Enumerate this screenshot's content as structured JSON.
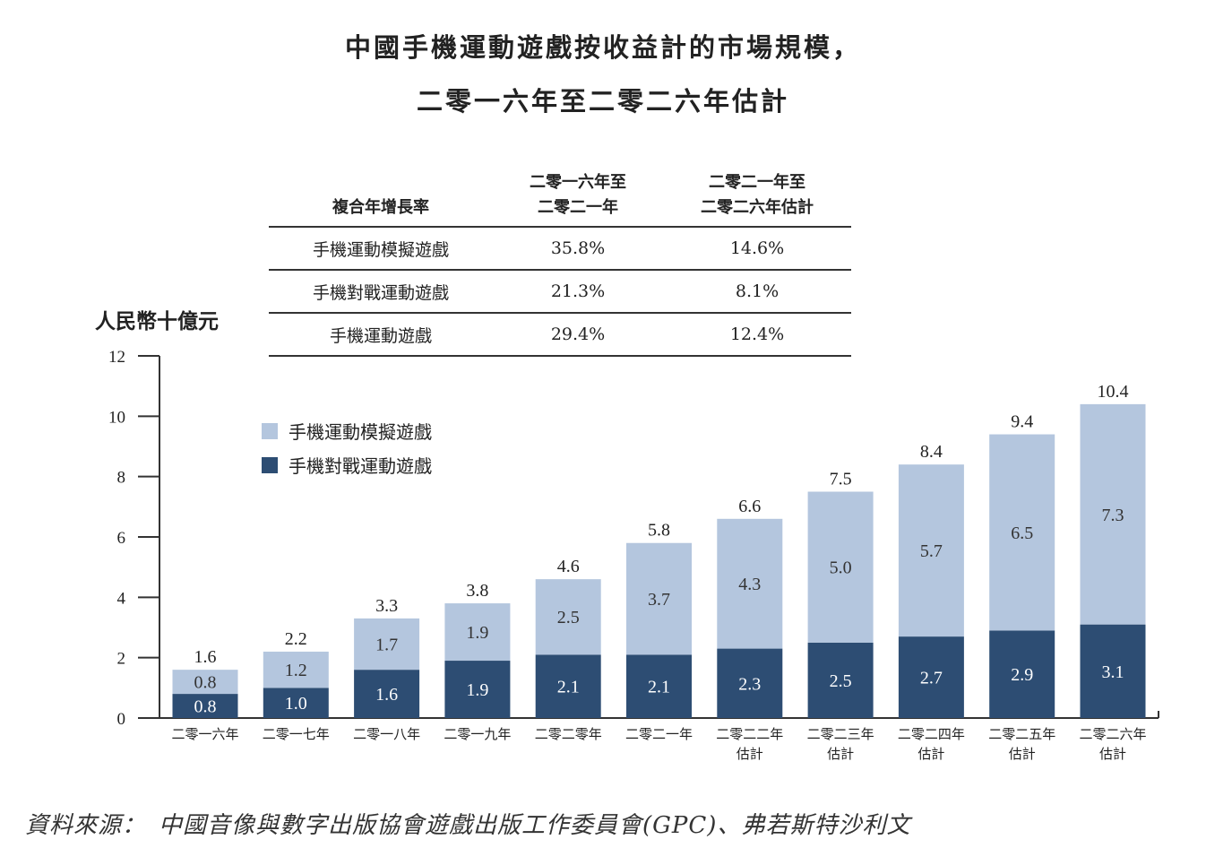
{
  "title_line1": "中國手機運動遊戲按收益計的市場規模，",
  "title_line2": "二零一六年至二零二六年估計",
  "cagr_table": {
    "headers": [
      "複合年增長率",
      "二零一六年至\n二零二一年",
      "二零二一年至\n二零二六年估計"
    ],
    "rows": [
      [
        "手機運動模擬遊戲",
        "35.8%",
        "14.6%"
      ],
      [
        "手機對戰運動遊戲",
        "21.3%",
        "8.1%"
      ],
      [
        "手機運動遊戲",
        "29.4%",
        "12.4%"
      ]
    ]
  },
  "source": "資料來源：　中國音像與數字出版協會遊戲出版工作委員會(GPC)、弗若斯特沙利文",
  "chart_data": {
    "type": "bar",
    "stacked": true,
    "ylabel": "人民幣十億元",
    "ylim": [
      0,
      12
    ],
    "yticks": [
      0,
      2,
      4,
      6,
      8,
      10,
      12
    ],
    "grid": false,
    "legend_placement": "top-left",
    "categories": [
      "二零一六年",
      "二零一七年",
      "二零一八年",
      "二零一九年",
      "二零二零年",
      "二零二一年",
      "二零二二年\n估計",
      "二零二三年\n估計",
      "二零二四年\n估計",
      "二零二五年\n估計",
      "二零二六年\n估計"
    ],
    "series": [
      {
        "name": "手機對戰運動遊戲",
        "color": "#2d4d73",
        "values": [
          0.8,
          1.0,
          1.6,
          1.9,
          2.1,
          2.1,
          2.3,
          2.5,
          2.7,
          2.9,
          3.1
        ]
      },
      {
        "name": "手機運動模擬遊戲",
        "color": "#b4c6de",
        "values": [
          0.8,
          1.2,
          1.7,
          1.9,
          2.5,
          3.7,
          4.3,
          5.0,
          5.7,
          6.5,
          7.3
        ]
      }
    ],
    "totals": [
      "1.6",
      "2.2",
      "3.3",
      "3.8",
      "4.6",
      "5.8",
      "6.6",
      "7.5",
      "8.4",
      "9.4",
      "10.4"
    ]
  }
}
